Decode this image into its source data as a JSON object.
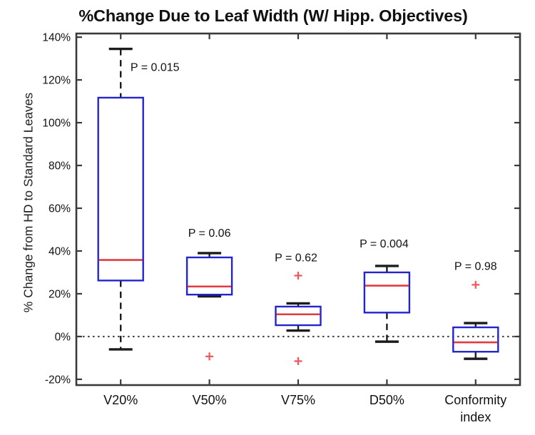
{
  "chart_data": {
    "type": "boxplot",
    "title": "%Change Due to Leaf Width (W/ Hipp. Objectives)",
    "ylabel": "% Change from HD to Standard Leaves",
    "xlabel": "",
    "ylim": [
      -22.7,
      141.7
    ],
    "grid": false,
    "zero_reference_line": 0,
    "y_ticks": [
      {
        "value": 140,
        "label": "140%"
      },
      {
        "value": 120,
        "label": "120%"
      },
      {
        "value": 100,
        "label": "100%"
      },
      {
        "value": 80,
        "label": "80%"
      },
      {
        "value": 60,
        "label": "60%"
      },
      {
        "value": 40,
        "label": "40%"
      },
      {
        "value": 20,
        "label": "20%"
      },
      {
        "value": 0,
        "label": "0%"
      },
      {
        "value": -20,
        "label": "-20%"
      }
    ],
    "categories": [
      "V20%",
      "V50%",
      "V75%",
      "D50%",
      "Conformity index"
    ],
    "boxes": [
      {
        "category": "V20%",
        "p_label": "P = 0.015",
        "p_label_y": 126,
        "p_label_dx": 48,
        "whisker_high": 134.5,
        "q3": 111.7,
        "median": 35.8,
        "q1": 26.2,
        "whisker_low": -6,
        "outliers": []
      },
      {
        "category": "V50%",
        "p_label": "P = 0.06",
        "p_label_y": 48.5,
        "p_label_dx": 0,
        "whisker_high": 39,
        "q3": 37,
        "median": 23.4,
        "q1": 19.6,
        "whisker_low": 18.8,
        "outliers": [
          -9.3
        ]
      },
      {
        "category": "V75%",
        "p_label": "P = 0.62",
        "p_label_y": 37,
        "p_label_dx": -3,
        "whisker_high": 15.5,
        "q3": 14,
        "median": 10.4,
        "q1": 5.3,
        "whisker_low": 2.8,
        "outliers": [
          28.5,
          -11.5
        ]
      },
      {
        "category": "D50%",
        "p_label": "P = 0.004",
        "p_label_y": 43.5,
        "p_label_dx": -4,
        "whisker_high": 33,
        "q3": 30,
        "median": 23.8,
        "q1": 11.2,
        "whisker_low": -2.4,
        "outliers": []
      },
      {
        "category": "Conformity\nindex",
        "p_label": "P = 0.98",
        "p_label_y": 33,
        "p_label_dx": 0,
        "whisker_high": 6.3,
        "q3": 4.3,
        "median": -2.7,
        "q1": -7.1,
        "whisker_low": -10.4,
        "outliers": [
          24.2
        ]
      }
    ],
    "colors": {
      "box_edge": "#2424cf",
      "median": "#e23b3e",
      "whisker": "#1c1c1c",
      "outlier": "#ef5a5e",
      "zero_line": "#4a4a4a",
      "axis_frame": "#3a3a3a",
      "text": "#111111"
    }
  }
}
